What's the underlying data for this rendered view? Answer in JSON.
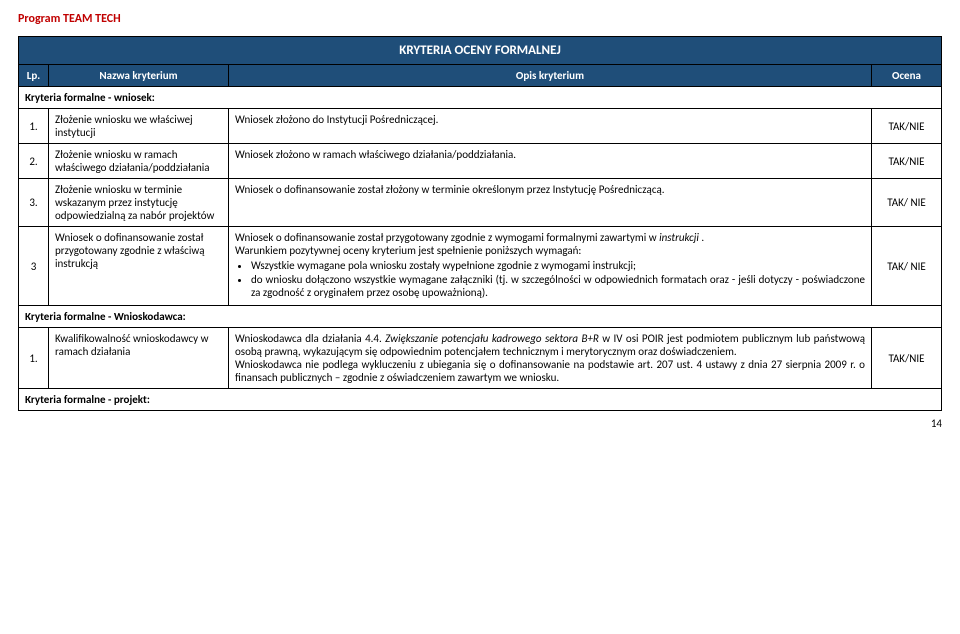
{
  "program_title": "Program TEAM TECH",
  "table_title": "KRYTERIA OCENY FORMALNEJ",
  "headers": {
    "lp": "Lp.",
    "name": "Nazwa kryterium",
    "opis": "Opis kryterium",
    "ocena": "Ocena"
  },
  "section_wniosek": "Kryteria formalne - wniosek:",
  "row1": {
    "lp": "1.",
    "name": "Złożenie wniosku we właściwej instytucji",
    "opis": "Wniosek złożono do Instytucji Pośredniczącej.",
    "ocena": "TAK/NIE"
  },
  "row2": {
    "lp": "2.",
    "name": "Złożenie wniosku w ramach właściwego działania/poddziałania",
    "opis": "Wniosek złożono w ramach właściwego działania/poddziałania.",
    "ocena": "TAK/NIE"
  },
  "row3": {
    "lp": "3.",
    "name": "Złożenie wniosku w terminie wskazanym przez instytucję odpowiedzialną za nabór projektów",
    "opis": "Wniosek o dofinansowanie został złożony w terminie określonym przez Instytucję Pośredniczącą.",
    "ocena": "TAK/ NIE"
  },
  "row4": {
    "lp": "3",
    "name": "Wniosek o dofinansowanie został przygotowany zgodnie z właściwą instrukcją",
    "opis_line1": "Wniosek o dofinansowanie został przygotowany zgodnie z wymogami formalnymi zawartymi w ",
    "opis_italic": "instrukcji",
    "opis_dot": " .",
    "opis_line2": "Warunkiem pozytywnej oceny kryterium jest spełnienie poniższych wymagań:",
    "bullet1": "Wszystkie wymagane pola wniosku  zostały wypełnione zgodnie z wymogami instrukcji;",
    "bullet2": "do wniosku dołączono wszystkie wymagane załączniki (tj. w szczególności w odpowiednich formatach oraz - jeśli dotyczy - poświadczone za zgodność z oryginałem przez osobę upoważnioną).",
    "ocena": "TAK/ NIE"
  },
  "section_wnioskodawca": "Kryteria formalne - Wnioskodawca:",
  "row5": {
    "lp": "1.",
    "name": "Kwalifikowalność wnioskodawcy w ramach działania",
    "opis_part1": "Wnioskodawca dla działania 4.4. ",
    "opis_italic": "Zwiększanie potencjału kadrowego sektora B+R",
    "opis_part2": " w IV osi POIR jest podmiotem publicznym lub państwową osobą prawną, wykazującym się odpowiednim potencjałem technicznym i merytorycznym oraz doświadczeniem.",
    "opis_line2": "Wnioskodawca nie podlega wykluczeniu z ubiegania się o dofinansowanie na podstawie art. 207 ust. 4 ustawy z dnia 27 sierpnia 2009 r. o finansach publicznych – zgodnie z oświadczeniem zawartym we wniosku.",
    "ocena": "TAK/NIE"
  },
  "section_projekt": "Kryteria formalne - projekt:",
  "pageno": "14"
}
